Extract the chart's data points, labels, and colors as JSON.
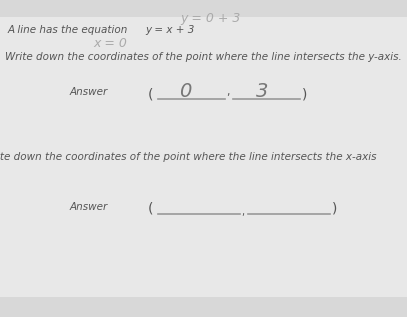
{
  "background_color": "#d8d8d8",
  "top_handwritten": "y = 0 + 3",
  "line1a": "A line has the equation",
  "line1b": "y = x + 3",
  "handwritten_x": "x = 0",
  "line2": "Write down the coordinates of the point where the line intersects the y-axis.",
  "answer1_label": "Answer",
  "answer1_open": "(",
  "answer1_close": ")",
  "answer1_left_val": "0",
  "answer1_right_val": "3",
  "line3": "ite down the coordinates of the point where the line intersects the x-axis",
  "answer2_label": "Answer",
  "answer2_open": "(",
  "answer2_close": ")",
  "text_color": "#555555",
  "handwritten_color": "#999999",
  "answer_color": "#666666",
  "underline_color": "#999999",
  "font_size_body": 7.5,
  "font_size_answer_label": 7.5,
  "font_size_handwritten": 14
}
